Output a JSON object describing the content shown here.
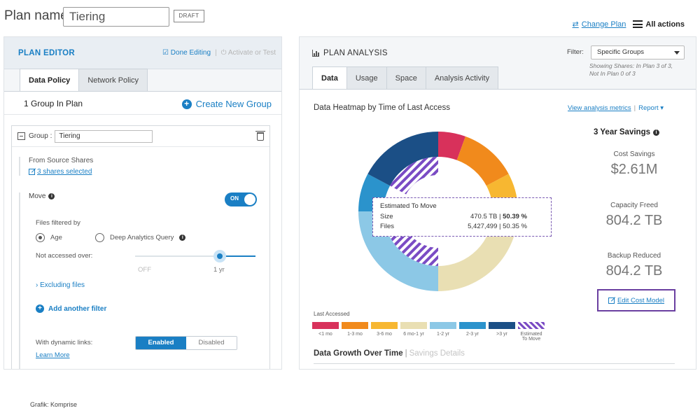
{
  "plan": {
    "label": "Plan name:",
    "value": "Tiering",
    "badge": "DRAFT"
  },
  "topbar": {
    "change_plan": "Change Plan",
    "all_actions": "All actions"
  },
  "editor": {
    "title": "PLAN EDITOR",
    "done_editing": "Done Editing",
    "activate": "Activate or Test",
    "tabs": [
      "Data Policy",
      "Network Policy"
    ],
    "group_count": "1 Group In Plan",
    "create_group": "Create New Group",
    "group_label": "Group :",
    "group_name": "Tiering",
    "source_title": "From Source Shares",
    "shares_link": "3 shares selected",
    "move_label": "Move",
    "toggle": "ON",
    "files_filtered": "Files filtered by",
    "opt_age": "Age",
    "opt_query": "Deep Analytics Query",
    "not_accessed": "Not accessed over:",
    "slider_min": "OFF",
    "slider_val": "1 yr",
    "excluding": "Excluding files",
    "add_filter": "Add another filter",
    "dynamic_links": "With dynamic links:",
    "enabled": "Enabled",
    "disabled": "Disabled",
    "learn_more": "Learn More"
  },
  "analysis": {
    "title": "PLAN ANALYSIS",
    "filter_label": "Filter:",
    "filter_value": "Specific Groups",
    "filter_hint_1": "Showing Shares: In Plan 3 of 3,",
    "filter_hint_2": "Not In Plan 0 of 3",
    "tabs": [
      "Data",
      "Usage",
      "Space",
      "Analysis Activity"
    ],
    "heatmap_title": "Data Heatmap by Time of Last Access",
    "view_metrics": "View analysis metrics",
    "report": "Report",
    "tooltip": {
      "title": "Estimated To Move",
      "size_label": "Size",
      "size_value": "470.5 TB",
      "size_pct": "50.39 %",
      "files_label": "Files",
      "files_value": "5,427,499",
      "files_pct": "50.35 %"
    },
    "savings_title": "3 Year Savings",
    "cost_label": "Cost Savings",
    "cost_value": "$2.61M",
    "capacity_label": "Capacity Freed",
    "capacity_value": "804.2 TB",
    "backup_label": "Backup Reduced",
    "backup_value": "804.2 TB",
    "edit_cost": "Edit Cost Model",
    "last_accessed": "Last Accessed",
    "legend": [
      {
        "label": "<1 mo",
        "color": "#d8315b"
      },
      {
        "label": "1-3 mo",
        "color": "#f18a1c"
      },
      {
        "label": "3-6 mo",
        "color": "#f7b731"
      },
      {
        "label": "6 mo-1 yr",
        "color": "#e9dfb3"
      },
      {
        "label": "1-2 yr",
        "color": "#8cc8e6"
      },
      {
        "label": "2-3 yr",
        "color": "#2b93cc"
      },
      {
        "label": ">3 yr",
        "color": "#1b4f86"
      },
      {
        "label": "Estimated To Move",
        "color": "#7a4bc4"
      }
    ],
    "growth_title": "Data Growth Over Time",
    "savings_details": "Savings Details"
  },
  "credit": "Grafik: Komprise"
}
